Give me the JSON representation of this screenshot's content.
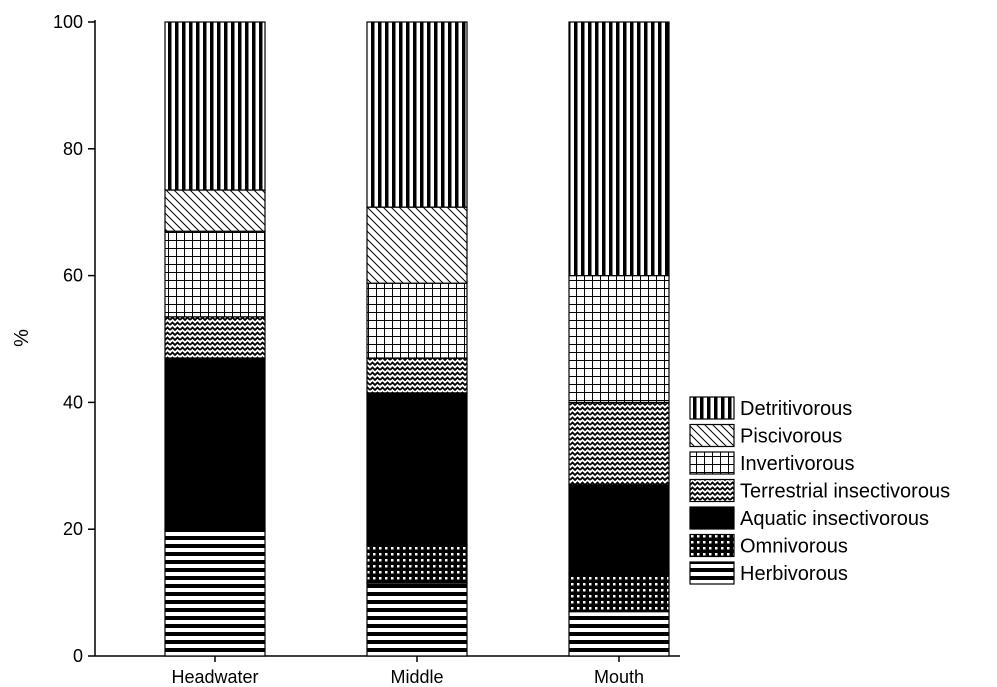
{
  "chart_data": {
    "type": "bar",
    "stacked": true,
    "ylabel": "%",
    "xlabel": "",
    "ylim": [
      0,
      100
    ],
    "yticks": [
      0,
      20,
      40,
      60,
      80,
      100
    ],
    "grid": false,
    "legend_position": "right",
    "categories": [
      "Headwater",
      "Middle",
      "Mouth"
    ],
    "series": [
      {
        "name": "Herbivorous",
        "pattern": "hlines",
        "values": [
          20,
          11.5,
          7
        ]
      },
      {
        "name": "Omnivorous",
        "pattern": "dots",
        "values": [
          0,
          6,
          6
        ]
      },
      {
        "name": "Aquatic insectivorous",
        "pattern": "solid",
        "values": [
          27,
          24,
          14
        ]
      },
      {
        "name": "Terrestrial insectivorous",
        "pattern": "zigzag",
        "values": [
          6.5,
          5.5,
          13
        ]
      },
      {
        "name": "Invertivorous",
        "pattern": "grid",
        "values": [
          13.5,
          11.8,
          20
        ]
      },
      {
        "name": "Piscivorous",
        "pattern": "diag",
        "values": [
          6.5,
          12,
          0
        ]
      },
      {
        "name": "Detritivorous",
        "pattern": "vlines",
        "values": [
          26.5,
          29.2,
          40
        ]
      }
    ],
    "legend_order": [
      "Detritivorous",
      "Piscivorous",
      "Invertivorous",
      "Terrestrial insectivorous",
      "Aquatic insectivorous",
      "Omnivorous",
      "Herbivorous"
    ]
  }
}
